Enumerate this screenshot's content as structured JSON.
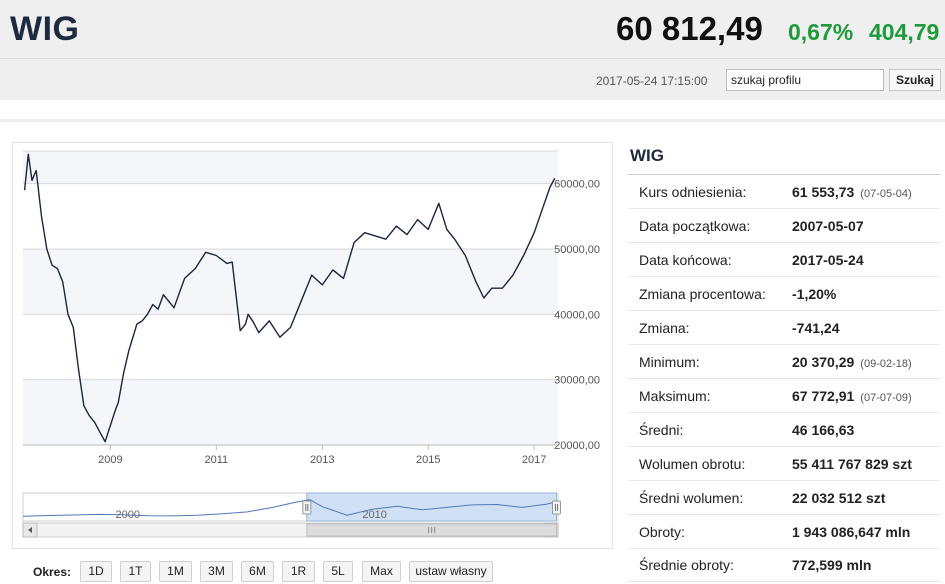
{
  "header": {
    "title": "WIG",
    "value": "60 812,49",
    "change_pct": "0,67%",
    "change_abs": "404,79",
    "timestamp": "2017-05-24 17:15:00",
    "search_value": "szukaj profilu",
    "search_button": "Szukaj"
  },
  "colors": {
    "accent_green": "#1f9a3a",
    "title_navy": "#1d2a3f",
    "navigator_fill": "#cfe0f5"
  },
  "chart_data": {
    "type": "line",
    "title": "",
    "y_tick_labels": [
      "60000,00",
      "50000,00",
      "40000,00",
      "30000,00",
      "20000,00"
    ],
    "x_tick_labels": [
      "2009",
      "2011",
      "2013",
      "2015",
      "2017"
    ],
    "ylim": [
      20000,
      65000
    ],
    "grid": true,
    "series": [
      {
        "x": [
          2007.38,
          2007.45,
          2007.52,
          2007.6,
          2007.7,
          2007.8,
          2007.9,
          2008.0,
          2008.1,
          2008.2,
          2008.3,
          2008.4,
          2008.5,
          2008.6,
          2008.7,
          2008.8,
          2008.9,
          2009.0,
          2009.1,
          2009.15,
          2009.25,
          2009.35,
          2009.5,
          2009.6,
          2009.7,
          2009.8,
          2009.9,
          2010.0,
          2010.2,
          2010.4,
          2010.6,
          2010.8,
          2011.0,
          2011.2,
          2011.3,
          2011.45,
          2011.55,
          2011.6,
          2011.7,
          2011.8,
          2012.0,
          2012.2,
          2012.4,
          2012.6,
          2012.8,
          2013.0,
          2013.2,
          2013.4,
          2013.6,
          2013.8,
          2014.0,
          2014.2,
          2014.4,
          2014.6,
          2014.8,
          2015.0,
          2015.2,
          2015.35,
          2015.5,
          2015.7,
          2015.9,
          2016.05,
          2016.2,
          2016.4,
          2016.6,
          2016.8,
          2017.0,
          2017.15,
          2017.3,
          2017.39
        ],
        "values": [
          59000,
          64500,
          60500,
          62000,
          55000,
          50000,
          47500,
          47000,
          45000,
          40000,
          38000,
          31500,
          26000,
          24500,
          23500,
          22000,
          20500,
          23000,
          25500,
          26500,
          31000,
          34500,
          38500,
          39000,
          40000,
          41500,
          40800,
          43000,
          41000,
          45500,
          47000,
          49500,
          49000,
          47800,
          48000,
          37500,
          38500,
          40000,
          38800,
          37200,
          39000,
          36500,
          38000,
          42000,
          46000,
          44500,
          46800,
          45500,
          51000,
          52500,
          52000,
          51500,
          53500,
          52200,
          54500,
          53000,
          57000,
          53000,
          51500,
          49000,
          45000,
          42500,
          44000,
          44000,
          46000,
          49000,
          52500,
          56000,
          59500,
          60812
        ]
      }
    ],
    "navigator": {
      "x_labels": [
        "2000",
        "2010"
      ]
    }
  },
  "periods": {
    "label": "Okres:",
    "buttons": [
      "1D",
      "1T",
      "1M",
      "3M",
      "6M",
      "1R",
      "5L",
      "Max",
      "ustaw własny"
    ]
  },
  "stats": {
    "title": "WIG",
    "rows": [
      {
        "label": "Kurs odniesienia:",
        "value": "61 553,73",
        "date": "(07-05-04)"
      },
      {
        "label": "Data początkowa:",
        "value": "2007-05-07",
        "date": ""
      },
      {
        "label": "Data końcowa:",
        "value": "2017-05-24",
        "date": ""
      },
      {
        "label": "Zmiana procentowa:",
        "value": "-1,20%",
        "date": ""
      },
      {
        "label": "Zmiana:",
        "value": "-741,24",
        "date": ""
      },
      {
        "label": "Minimum:",
        "value": "20 370,29",
        "date": "(09-02-18)"
      },
      {
        "label": "Maksimum:",
        "value": "67 772,91",
        "date": "(07-07-09)"
      },
      {
        "label": "Średni:",
        "value": "46 166,63",
        "date": ""
      },
      {
        "label": "Wolumen obrotu:",
        "value": "55 411 767 829 szt",
        "date": ""
      },
      {
        "label": "Średni wolumen:",
        "value": "22 032 512 szt",
        "date": ""
      },
      {
        "label": "Obroty:",
        "value": "1 943 086,647 mln",
        "date": ""
      },
      {
        "label": "Średnie obroty:",
        "value": "772,599 mln",
        "date": ""
      }
    ]
  }
}
